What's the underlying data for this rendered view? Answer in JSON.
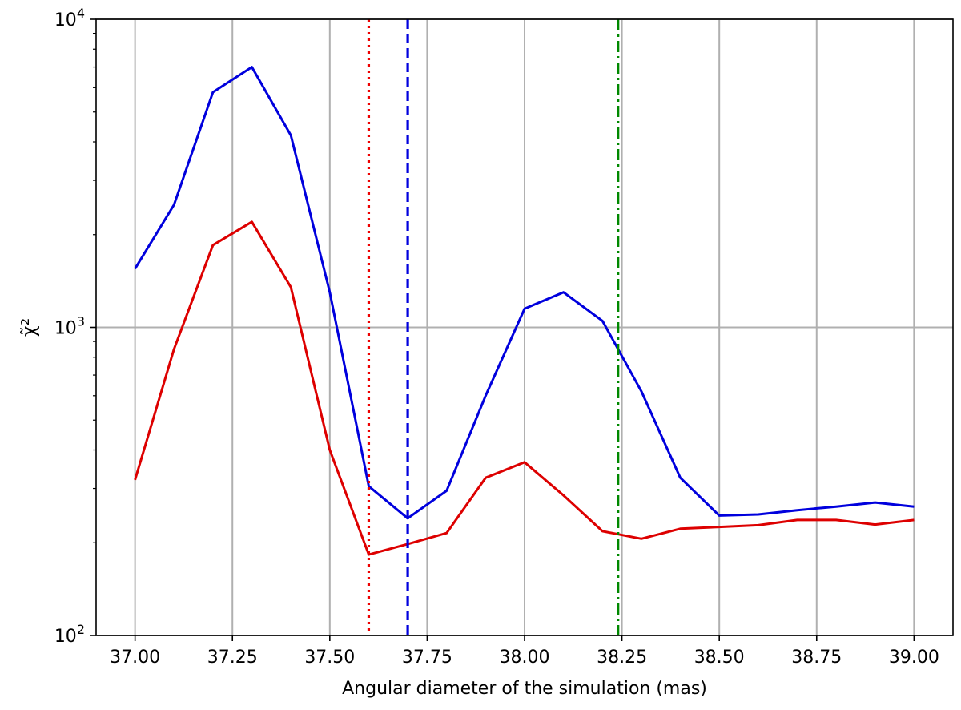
{
  "chart_data": {
    "type": "line",
    "title": "",
    "xlabel": "Angular diameter of the simulation (mas)",
    "ylabel": "χ̃²",
    "xlim": [
      36.9,
      39.1
    ],
    "ylim": [
      100,
      10000
    ],
    "yscale": "log",
    "grid": true,
    "x_ticks": [
      {
        "value": 37.0,
        "label": "37.00"
      },
      {
        "value": 37.25,
        "label": "37.25"
      },
      {
        "value": 37.5,
        "label": "37.50"
      },
      {
        "value": 37.75,
        "label": "37.75"
      },
      {
        "value": 38.0,
        "label": "38.00"
      },
      {
        "value": 38.25,
        "label": "38.25"
      },
      {
        "value": 38.5,
        "label": "38.50"
      },
      {
        "value": 38.75,
        "label": "38.75"
      },
      {
        "value": 39.0,
        "label": "39.00"
      }
    ],
    "y_ticks": [
      {
        "value": 100,
        "base": "10",
        "exp": "2"
      },
      {
        "value": 1000,
        "base": "10",
        "exp": "3"
      },
      {
        "value": 10000,
        "base": "10",
        "exp": "4"
      }
    ],
    "x": [
      37.0,
      37.1,
      37.2,
      37.3,
      37.4,
      37.5,
      37.6,
      37.7,
      37.8,
      37.9,
      38.0,
      38.1,
      38.2,
      38.3,
      38.4,
      38.5,
      38.6,
      38.7,
      38.8,
      38.9,
      39.0
    ],
    "series": [
      {
        "color": "#0000dd",
        "values": [
          1550,
          2500,
          5800,
          7000,
          4200,
          1300,
          305,
          240,
          295,
          600,
          1150,
          1300,
          1050,
          620,
          325,
          245,
          247,
          255,
          262,
          270,
          262
        ]
      },
      {
        "color": "#dd0000",
        "values": [
          320,
          850,
          1850,
          2200,
          1350,
          400,
          183,
          198,
          215,
          325,
          365,
          285,
          218,
          206,
          222,
          225,
          228,
          237,
          237,
          229,
          237
        ]
      }
    ],
    "vlines": [
      {
        "x": 37.6,
        "color": "#ee0000",
        "style": "dotted"
      },
      {
        "x": 37.7,
        "color": "#0000dd",
        "style": "dashed"
      },
      {
        "x": 38.24,
        "color": "#008800",
        "style": "dashdot"
      }
    ]
  }
}
